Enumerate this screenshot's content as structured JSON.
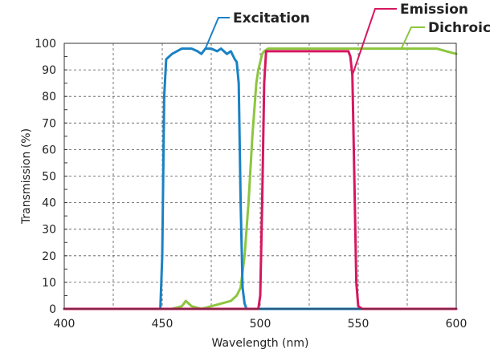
{
  "chart_data": {
    "type": "line",
    "xlabel": "Wavelength (nm)",
    "ylabel": "Transmission (%)",
    "xlim": [
      400,
      600
    ],
    "ylim": [
      0,
      100
    ],
    "x_ticks": [
      400,
      450,
      500,
      550,
      600
    ],
    "y_ticks": [
      0,
      10,
      20,
      30,
      40,
      50,
      60,
      70,
      80,
      90,
      100
    ],
    "grid": true,
    "legend_placement": "top-inline-callouts",
    "series": [
      {
        "name": "Excitation",
        "color": "#1a82c4",
        "x": [
          400,
          445,
          449,
          450,
          451,
          452,
          455,
          460,
          465,
          468,
          470,
          472,
          475,
          478,
          480,
          483,
          485,
          487,
          488,
          489,
          490,
          491,
          492,
          493,
          495,
          500,
          600
        ],
        "y": [
          0,
          0,
          0,
          20,
          80,
          94,
          96,
          98,
          98,
          97,
          96,
          98,
          98,
          97,
          98,
          96,
          97,
          94,
          93,
          85,
          40,
          8,
          2,
          0,
          0,
          0,
          0
        ]
      },
      {
        "name": "Emission",
        "color": "#d6175f",
        "x": [
          400,
          499,
          500,
          501,
          502,
          503,
          505,
          510,
          520,
          530,
          540,
          545,
          546,
          547,
          548,
          549,
          550,
          552,
          600
        ],
        "y": [
          0,
          0,
          5,
          40,
          85,
          97,
          97,
          97,
          97,
          97,
          97,
          97,
          95,
          88,
          50,
          10,
          1,
          0,
          0
        ]
      },
      {
        "name": "Dichroic",
        "color": "#8cc63f",
        "x": [
          400,
          455,
          460,
          462,
          465,
          470,
          475,
          480,
          485,
          488,
          490,
          492,
          494,
          496,
          498,
          499,
          500,
          501,
          502,
          504,
          510,
          520,
          530,
          540,
          550,
          560,
          570,
          580,
          590,
          595,
          600
        ],
        "y": [
          0,
          0,
          1,
          3,
          1,
          0,
          1,
          2,
          3,
          5,
          8,
          20,
          40,
          65,
          85,
          90,
          93,
          96,
          97,
          98,
          98,
          98,
          98,
          98,
          98,
          98,
          98,
          98,
          98,
          97,
          96
        ]
      }
    ]
  }
}
